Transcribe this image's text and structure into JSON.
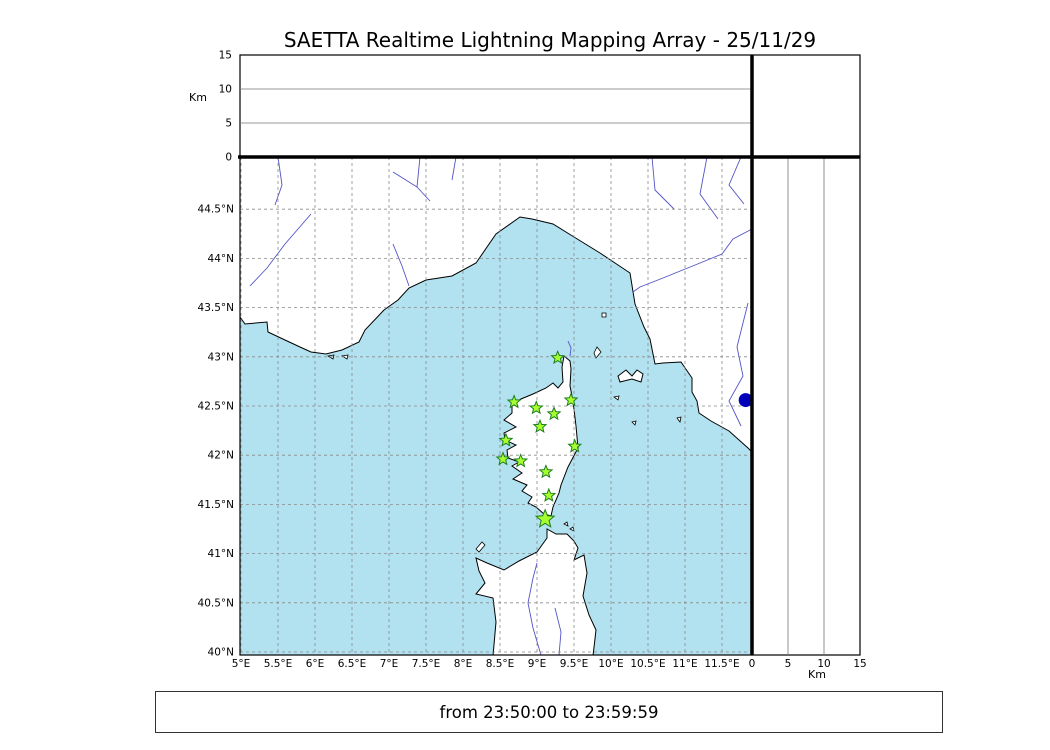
{
  "title": "SAETTA Realtime Lightning Mapping Array - 25/11/29",
  "footer": {
    "text": "from 23:50:00 to 23:59:59"
  },
  "axes": {
    "km_label": "Km",
    "alt_ticks": [
      {
        "value": 0,
        "label": "0"
      },
      {
        "value": 5,
        "label": "5"
      },
      {
        "value": 10,
        "label": "10"
      },
      {
        "value": 15,
        "label": "15"
      }
    ],
    "lat_ticks": [
      {
        "value": 44.5,
        "label": "44.5°N"
      },
      {
        "value": 44.0,
        "label": "44°N"
      },
      {
        "value": 43.5,
        "label": "43.5°N"
      },
      {
        "value": 43.0,
        "label": "43°N"
      },
      {
        "value": 42.5,
        "label": "42.5°N"
      },
      {
        "value": 42.0,
        "label": "42°N"
      },
      {
        "value": 41.5,
        "label": "41.5°N"
      },
      {
        "value": 41.0,
        "label": "41°N"
      },
      {
        "value": 40.5,
        "label": "40.5°N"
      },
      {
        "value": 40.0,
        "label": "40°N"
      }
    ],
    "lon_ticks": [
      {
        "value": 5.0,
        "label": "5°E"
      },
      {
        "value": 5.5,
        "label": "5.5°E"
      },
      {
        "value": 6.0,
        "label": "6°E"
      },
      {
        "value": 6.5,
        "label": "6.5°E"
      },
      {
        "value": 7.0,
        "label": "7°E"
      },
      {
        "value": 7.5,
        "label": "7.5°E"
      },
      {
        "value": 8.0,
        "label": "8°E"
      },
      {
        "value": 8.5,
        "label": "8.5°E"
      },
      {
        "value": 9.0,
        "label": "9°E"
      },
      {
        "value": 9.5,
        "label": "9.5°E"
      },
      {
        "value": 10.0,
        "label": "10°E"
      },
      {
        "value": 10.5,
        "label": "10.5°E"
      },
      {
        "value": 11.0,
        "label": "11°E"
      },
      {
        "value": 11.5,
        "label": "11.5°E"
      }
    ]
  },
  "colors": {
    "sea": "#b2e2f0",
    "land": "#ffffff",
    "river": "#5353c8",
    "grid": "#8a8a8a",
    "star_fill": "#a6ff2f",
    "star_stroke": "#1e7d1e",
    "edge_dot": "#0000bb"
  },
  "chart_data": {
    "type": "scatter",
    "title": "SAETTA Realtime Lightning Mapping Array - 25/11/29",
    "date": "25/11/29",
    "time_window": {
      "from": "23:50:00",
      "to": "23:59:59"
    },
    "map_extent": {
      "lon_min": 5.0,
      "lon_max": 11.92,
      "lat_min": 39.97,
      "lat_max": 45.03
    },
    "grid_step_deg": 0.5,
    "altitude_panels": {
      "unit": "Km",
      "range": [
        0,
        15
      ],
      "ticks": [
        0,
        5,
        10,
        15
      ]
    },
    "stations": [
      {
        "lon": 9.28,
        "lat": 42.99
      },
      {
        "lon": 8.69,
        "lat": 42.54
      },
      {
        "lon": 8.99,
        "lat": 42.48
      },
      {
        "lon": 9.46,
        "lat": 42.56
      },
      {
        "lon": 9.23,
        "lat": 42.42
      },
      {
        "lon": 9.04,
        "lat": 42.29
      },
      {
        "lon": 8.58,
        "lat": 42.15
      },
      {
        "lon": 9.51,
        "lat": 42.09
      },
      {
        "lon": 8.54,
        "lat": 41.96
      },
      {
        "lon": 8.78,
        "lat": 41.94
      },
      {
        "lon": 9.12,
        "lat": 41.83
      },
      {
        "lon": 9.16,
        "lat": 41.59
      },
      {
        "lon": 9.11,
        "lat": 41.35,
        "size": "large"
      }
    ],
    "edge_marker": {
      "lon": 11.82,
      "lat": 42.56
    },
    "lightning_sources": []
  }
}
